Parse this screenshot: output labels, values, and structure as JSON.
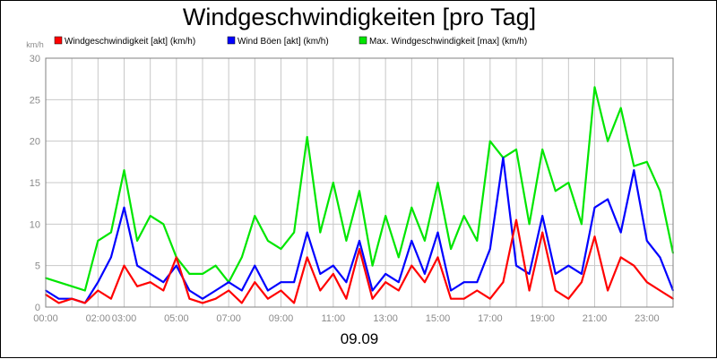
{
  "chart_data": {
    "type": "line",
    "title": "Windgeschwindigkeiten [pro Tag]",
    "ylabel": "km/h",
    "xlabel": "09.09",
    "ylim": [
      0,
      30
    ],
    "yticks": [
      0,
      5,
      10,
      15,
      20,
      25,
      30
    ],
    "xlim": [
      0,
      24
    ],
    "xticks": [
      {
        "value": 0,
        "label": "00:00"
      },
      {
        "value": 2,
        "label": "02:00"
      },
      {
        "value": 3,
        "label": "03:00"
      },
      {
        "value": 5,
        "label": "05:00"
      },
      {
        "value": 7,
        "label": "07:00"
      },
      {
        "value": 9,
        "label": "09:00"
      },
      {
        "value": 11,
        "label": "11:00"
      },
      {
        "value": 13,
        "label": "13:00"
      },
      {
        "value": 15,
        "label": "15:00"
      },
      {
        "value": 17,
        "label": "17:00"
      },
      {
        "value": 19,
        "label": "19:00"
      },
      {
        "value": 21,
        "label": "21:00"
      },
      {
        "value": 23,
        "label": "23:00"
      }
    ],
    "grid": true,
    "legend_position": "top",
    "series": [
      {
        "name": "Windgeschwindigkeit [akt] (km/h)",
        "color": "#ff0000",
        "x": [
          0,
          0.5,
          1,
          1.5,
          2,
          2.5,
          3,
          3.5,
          4,
          4.5,
          5,
          5.5,
          6,
          6.5,
          7,
          7.5,
          8,
          8.5,
          9,
          9.5,
          10,
          10.5,
          11,
          11.5,
          12,
          12.5,
          13,
          13.5,
          14,
          14.5,
          15,
          15.5,
          16,
          16.5,
          17,
          17.5,
          18,
          18.5,
          19,
          19.5,
          20,
          20.5,
          21,
          21.5,
          22,
          22.5,
          23,
          23.5,
          24
        ],
        "values": [
          1.5,
          0.5,
          1,
          0.5,
          2,
          1,
          5,
          2.5,
          3,
          2,
          6,
          1,
          0.5,
          1,
          2,
          0.5,
          3,
          1,
          2,
          0.5,
          6,
          2,
          4,
          1,
          7,
          1,
          3,
          2,
          5,
          3,
          6,
          1,
          1,
          2,
          1,
          3,
          10.5,
          2,
          9,
          2,
          1,
          3,
          8.5,
          2,
          6,
          5,
          3,
          2,
          1
        ]
      },
      {
        "name": "Wind Böen [akt] (km/h)",
        "color": "#0000ff",
        "x": [
          0,
          0.5,
          1,
          1.5,
          2,
          2.5,
          3,
          3.5,
          4,
          4.5,
          5,
          5.5,
          6,
          6.5,
          7,
          7.5,
          8,
          8.5,
          9,
          9.5,
          10,
          10.5,
          11,
          11.5,
          12,
          12.5,
          13,
          13.5,
          14,
          14.5,
          15,
          15.5,
          16,
          16.5,
          17,
          17.5,
          18,
          18.5,
          19,
          19.5,
          20,
          20.5,
          21,
          21.5,
          22,
          22.5,
          23,
          23.5,
          24
        ],
        "values": [
          2,
          1,
          1,
          0.5,
          3,
          6,
          12,
          5,
          4,
          3,
          5,
          2,
          1,
          2,
          3,
          2,
          5,
          2,
          3,
          3,
          9,
          4,
          5,
          3,
          8,
          2,
          4,
          3,
          8,
          4,
          9,
          2,
          3,
          3,
          7,
          18,
          5,
          4,
          11,
          4,
          5,
          4,
          12,
          13,
          9,
          16.5,
          8,
          6,
          2
        ]
      },
      {
        "name": "Max. Windgeschwindigkeit [max] (km/h)",
        "color": "#00e600",
        "x": [
          0,
          0.5,
          1,
          1.5,
          2,
          2.5,
          3,
          3.5,
          4,
          4.5,
          5,
          5.5,
          6,
          6.5,
          7,
          7.5,
          8,
          8.5,
          9,
          9.5,
          10,
          10.5,
          11,
          11.5,
          12,
          12.5,
          13,
          13.5,
          14,
          14.5,
          15,
          15.5,
          16,
          16.5,
          17,
          17.5,
          18,
          18.5,
          19,
          19.5,
          20,
          20.5,
          21,
          21.5,
          22,
          22.5,
          23,
          23.5,
          24
        ],
        "values": [
          3.5,
          3,
          2.5,
          2,
          8,
          9,
          16.5,
          8,
          11,
          10,
          6,
          4,
          4,
          5,
          3,
          6,
          11,
          8,
          7,
          9,
          20.5,
          9,
          15,
          8,
          14,
          5,
          11,
          6,
          12,
          8,
          15,
          7,
          11,
          8,
          20,
          18,
          19,
          10,
          19,
          14,
          15,
          10,
          26.5,
          20,
          24,
          17,
          17.5,
          14,
          6.5
        ]
      }
    ]
  }
}
